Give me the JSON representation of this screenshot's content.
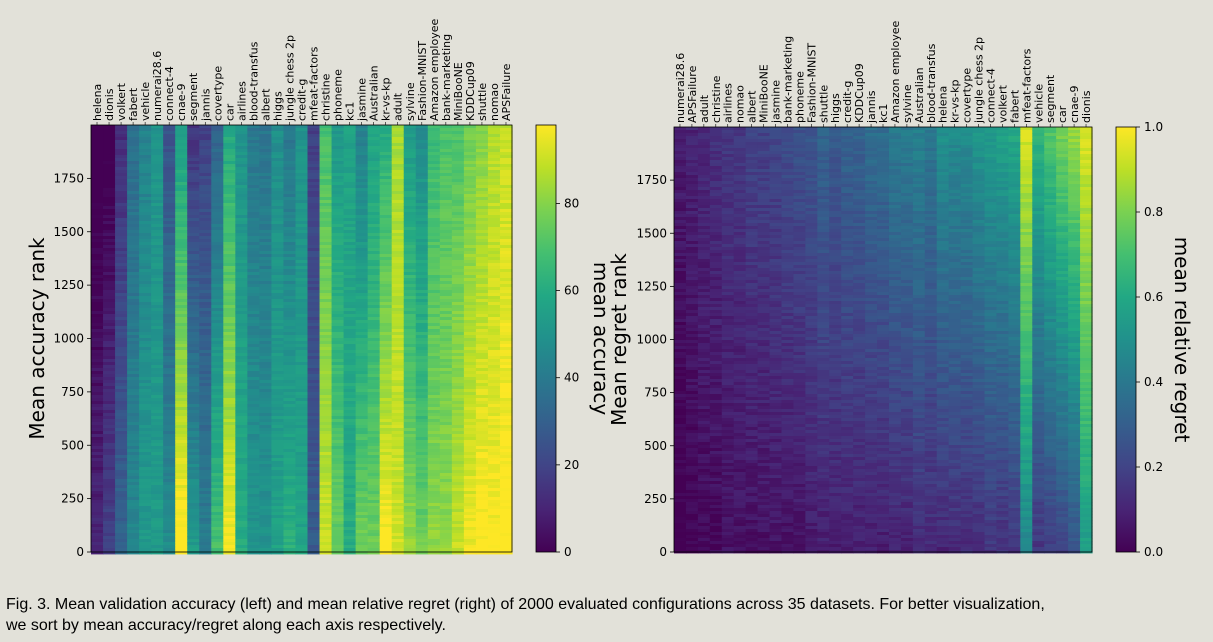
{
  "caption": {
    "line1": "Fig. 3. Mean validation accuracy (left) and mean relative regret (right) of 2000 evaluated configurations across 35 datasets. For better visualization,",
    "line2": "we sort by mean accuracy/regret along each axis respectively."
  },
  "chart_data": [
    {
      "type": "heatmap",
      "ylabel": "Mean accuracy rank",
      "colorbar_label": "mean accuracy",
      "colormap": "viridis",
      "ylim": [
        0,
        2000
      ],
      "y_ticks": [
        0,
        250,
        500,
        750,
        1000,
        1250,
        1500,
        1750
      ],
      "colorbar_range": [
        0,
        98
      ],
      "colorbar_ticks": [
        0,
        20,
        40,
        60,
        80
      ],
      "datasets": [
        "helena",
        "dionis",
        "volkert",
        "fabert",
        "vehicle",
        "numerai28.6",
        "connect-4",
        "cnae-9",
        "segment",
        "jannis",
        "covertype",
        "car",
        "airlines",
        "blood-transfus",
        "albert",
        "higgs",
        "jungle chess 2p",
        "credit-g",
        "mfeat-factors",
        "christine",
        "phoneme",
        "kc1",
        "jasmine",
        "Australian",
        "kr-vs-kp",
        "adult",
        "sylvine",
        "Fashion-MNIST",
        "Amazon employee",
        "bank-marketing",
        "MiniBooNE",
        "KDDCup09",
        "shuttle",
        "nomao",
        "APSFailure"
      ],
      "approx_mean_value": [
        3,
        8,
        22,
        40,
        48,
        52,
        36,
        78,
        34,
        30,
        50,
        78,
        55,
        45,
        44,
        52,
        50,
        53,
        23,
        80,
        64,
        58,
        60,
        66,
        80,
        88,
        68,
        62,
        74,
        76,
        80,
        86,
        90,
        92,
        95
      ],
      "rank_dependence": [
        0.08,
        0.12,
        0.1,
        0.05,
        0.05,
        0.01,
        0.12,
        0.25,
        0.2,
        0.12,
        0.2,
        0.2,
        0.05,
        0.06,
        0.06,
        0.04,
        0.12,
        0.04,
        0.05,
        0.12,
        0.12,
        0.02,
        0.18,
        0.1,
        0.2,
        0.03,
        0.15,
        0.15,
        0.08,
        0.06,
        0.1,
        0.1,
        0.1,
        0.06,
        0.06
      ]
    },
    {
      "type": "heatmap",
      "ylabel": "Mean regret rank",
      "colorbar_label": "mean relative regret",
      "colormap": "viridis",
      "ylim": [
        0,
        2000
      ],
      "y_ticks": [
        0,
        250,
        500,
        750,
        1000,
        1250,
        1500,
        1750
      ],
      "colorbar_range": [
        0,
        1
      ],
      "colorbar_ticks": [
        0.0,
        0.2,
        0.4,
        0.6,
        0.8,
        1.0
      ],
      "datasets": [
        "numerai28.6",
        "APSFailure",
        "adult",
        "christine",
        "airlines",
        "nomao",
        "albert",
        "MiniBooNE",
        "jasmine",
        "bank-marketing",
        "phoneme",
        "Fashion-MNIST",
        "shuttle",
        "higgs",
        "credit-g",
        "KDDCup09",
        "jannis",
        "kc1",
        "Amazon employee",
        "sylvine",
        "Australian",
        "blood-transfus",
        "helena",
        "kr-vs-kp",
        "covertype",
        "jungle chess 2p",
        "connect-4",
        "volkert",
        "fabert",
        "mfeat-factors",
        "vehicle",
        "segment",
        "car",
        "cnae-9",
        "dionis"
      ],
      "approx_mean_value": [
        0.03,
        0.05,
        0.07,
        0.08,
        0.1,
        0.1,
        0.12,
        0.12,
        0.13,
        0.14,
        0.15,
        0.17,
        0.2,
        0.18,
        0.2,
        0.2,
        0.22,
        0.22,
        0.25,
        0.25,
        0.28,
        0.25,
        0.3,
        0.3,
        0.3,
        0.32,
        0.35,
        0.35,
        0.38,
        0.7,
        0.4,
        0.45,
        0.5,
        0.55,
        0.75
      ],
      "rank_dependence": [
        0.05,
        0.05,
        0.05,
        0.06,
        0.06,
        0.06,
        0.08,
        0.08,
        0.08,
        0.1,
        0.1,
        0.1,
        0.12,
        0.1,
        0.12,
        0.12,
        0.14,
        0.14,
        0.16,
        0.16,
        0.16,
        0.14,
        0.2,
        0.18,
        0.18,
        0.2,
        0.2,
        0.22,
        0.22,
        0.25,
        0.25,
        0.28,
        0.3,
        0.3,
        0.2
      ]
    }
  ]
}
